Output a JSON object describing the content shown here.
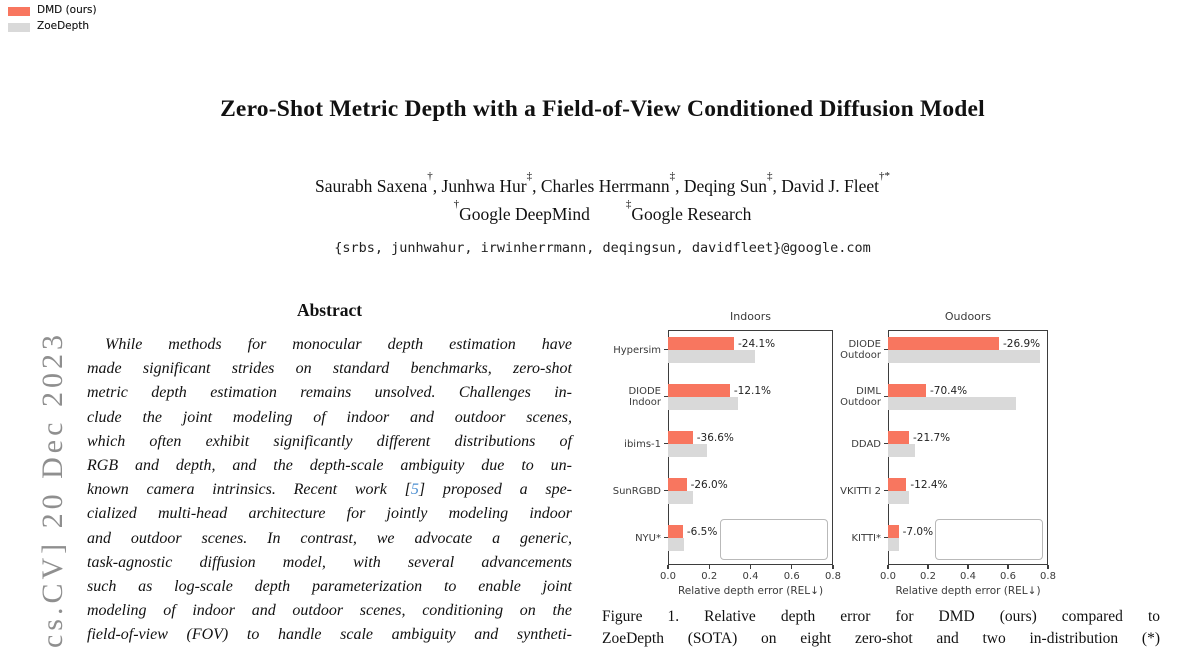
{
  "arxiv_stamp": "[cs.CV] 20 Dec 2023",
  "title": "Zero-Shot Metric Depth with a Field-of-View Conditioned Diffusion Model",
  "authors": [
    {
      "name": "Saurabh Saxena",
      "sup": "†"
    },
    {
      "name": "Junhwa Hur",
      "sup": "‡"
    },
    {
      "name": "Charles Herrmann",
      "sup": "‡"
    },
    {
      "name": "Deqing Sun",
      "sup": "‡"
    },
    {
      "name": "David J. Fleet",
      "sup": "†*"
    }
  ],
  "affiliations": [
    {
      "sup": "†",
      "label": "Google DeepMind"
    },
    {
      "sup": "‡",
      "label": "Google Research"
    }
  ],
  "email": "{srbs, junhwahur, irwinherrmann, deqingsun, davidfleet}@google.com",
  "abstract": {
    "heading": "Abstract",
    "lines": [
      "While methods for monocular depth estimation have",
      "made significant strides on standard benchmarks, zero-shot",
      "metric depth estimation remains unsolved. Challenges in-",
      "clude the joint modeling of indoor and outdoor scenes,",
      "which often exhibit significantly different distributions of",
      "RGB and depth, and the depth-scale ambiguity due to un-",
      "",
      "cialized multi-head architecture for jointly modeling indoor",
      "and outdoor scenes. In contrast, we advocate a generic,",
      "task-agnostic diffusion model, with several advancements",
      "such as log-scale depth parameterization to enable joint",
      "modeling of indoor and outdoor scenes, conditioning on the",
      "field-of-view (FOV) to handle scale ambiguity and syntheti-"
    ],
    "cite_line": {
      "index": 6,
      "pre": "known camera intrinsics. Recent work [",
      "link": "5",
      "post": "] proposed a spe-"
    }
  },
  "figure": {
    "caption_line1": "Figure 1.   Relative depth error for DMD (ours) compared to",
    "caption_line2": "ZoeDepth (SOTA) on eight zero-shot and two in-distribution (*)"
  },
  "colors": {
    "dmd": "#f8765f",
    "zoe": "#d9d9d9",
    "cite_link": "#4d8fd1",
    "stamp_gray": "#8f8f8f",
    "axis": "#3d3d3d"
  },
  "chart_data": [
    {
      "type": "bar",
      "orientation": "horizontal",
      "title": "Indoors",
      "categories": [
        "Hypersim",
        "DIODE\nIndoor",
        "ibims-1",
        "SunRGBD",
        "NYU*"
      ],
      "series": [
        {
          "name": "DMD (ours)",
          "color": "#f8765f",
          "values": [
            0.32,
            0.3,
            0.12,
            0.09,
            0.072
          ]
        },
        {
          "name": "ZoeDepth",
          "color": "#d9d9d9",
          "values": [
            0.42,
            0.34,
            0.19,
            0.122,
            0.077
          ]
        }
      ],
      "bar_labels": [
        "-24.1%",
        "-12.1%",
        "-36.6%",
        "-26.0%",
        "-6.5%"
      ],
      "xlabel": "Relative depth error (REL↓)",
      "xlim": [
        0.0,
        0.8
      ],
      "xticks": [
        "0.0",
        "0.2",
        "0.4",
        "0.6",
        "0.8"
      ],
      "grid": false,
      "legend_position": "lower right"
    },
    {
      "type": "bar",
      "orientation": "horizontal",
      "title": "Oudoors",
      "categories": [
        "DIODE\nOutdoor",
        "DIML\nOutdoor",
        "DDAD",
        "VKITTI 2",
        "KITTI*"
      ],
      "series": [
        {
          "name": "DMD (ours)",
          "color": "#f8765f",
          "values": [
            0.555,
            0.19,
            0.105,
            0.092,
            0.053
          ]
        },
        {
          "name": "ZoeDepth",
          "color": "#d9d9d9",
          "values": [
            0.76,
            0.64,
            0.134,
            0.105,
            0.057
          ]
        }
      ],
      "bar_labels": [
        "-26.9%",
        "-70.4%",
        "-21.7%",
        "-12.4%",
        "-7.0%"
      ],
      "xlabel": "Relative depth error (REL↓)",
      "xlim": [
        0.0,
        0.8
      ],
      "xticks": [
        "0.0",
        "0.2",
        "0.4",
        "0.6",
        "0.8"
      ],
      "grid": false,
      "legend_position": "lower right"
    }
  ]
}
